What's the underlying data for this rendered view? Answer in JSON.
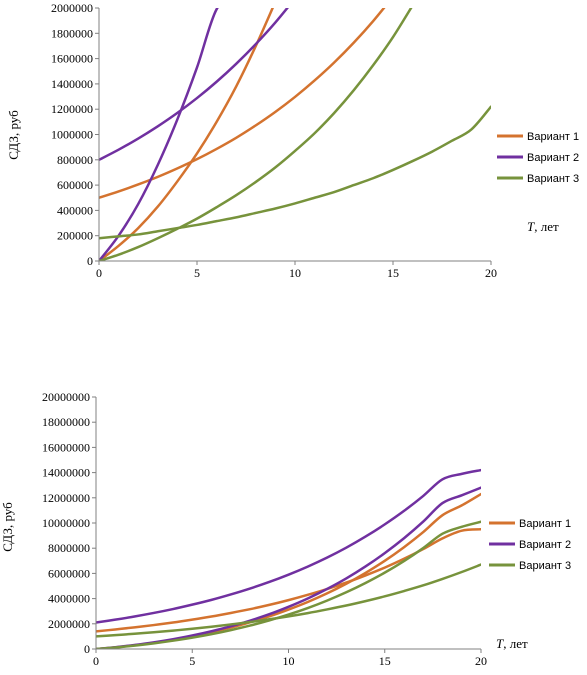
{
  "chart_data": [
    {
      "type": "line",
      "ylabel": "СДЗ, руб",
      "xlabel_italic": "T",
      "xlabel_rest": ", лет",
      "xlim": [
        0,
        20
      ],
      "ylim": [
        0,
        2000000
      ],
      "xticks": [
        "0",
        "5",
        "10",
        "15",
        "20"
      ],
      "yticks": [
        "0",
        "200000",
        "400000",
        "600000",
        "800000",
        "1000000",
        "1200000",
        "1400000",
        "1600000",
        "1800000",
        "2000000"
      ],
      "legend": [
        "Вариант 1",
        "Вариант 2",
        "Вариант 3"
      ],
      "colors": [
        "#d4732f",
        "#7030a0",
        "#77933c"
      ],
      "x": [
        0,
        1,
        2,
        3,
        4,
        5,
        6,
        7,
        8,
        9,
        10,
        11,
        12,
        13,
        14,
        15,
        16,
        17,
        18,
        19,
        20
      ],
      "series": [
        {
          "color": "#d4732f",
          "values": [
            500000,
            550000,
            605000,
            665000,
            732000,
            805000,
            886000,
            974000,
            1072000,
            1179000,
            1297000,
            1427000,
            1569000,
            1726000,
            1899000,
            2089000,
            null,
            null,
            null,
            null,
            null
          ]
        },
        {
          "color": "#d4732f",
          "values": [
            0,
            120000,
            260000,
            430000,
            630000,
            850000,
            1100000,
            1380000,
            1700000,
            2050000,
            null,
            null,
            null,
            null,
            null,
            null,
            null,
            null,
            null,
            null,
            null
          ]
        },
        {
          "color": "#7030a0",
          "values": [
            800000,
            880000,
            968000,
            1065000,
            1171000,
            1288000,
            1417000,
            1559000,
            1715000,
            1886000,
            2075000,
            null,
            null,
            null,
            null,
            null,
            null,
            null,
            null,
            null,
            null
          ]
        },
        {
          "color": "#7030a0",
          "values": [
            0,
            200000,
            450000,
            760000,
            1120000,
            1530000,
            1990000,
            2100000,
            null,
            null,
            null,
            null,
            null,
            null,
            null,
            null,
            null,
            null,
            null,
            null,
            null
          ]
        },
        {
          "color": "#77933c",
          "values": [
            180000,
            195000,
            210000,
            235000,
            260000,
            285000,
            315000,
            345000,
            380000,
            415000,
            455000,
            500000,
            545000,
            600000,
            655000,
            720000,
            790000,
            865000,
            950000,
            1040000,
            1220000
          ]
        },
        {
          "color": "#77933c",
          "values": [
            0,
            50000,
            110000,
            180000,
            255000,
            335000,
            425000,
            520000,
            625000,
            740000,
            870000,
            1010000,
            1170000,
            1350000,
            1550000,
            1770000,
            2020000,
            null,
            null,
            null,
            null
          ]
        }
      ]
    },
    {
      "type": "line",
      "ylabel": "СДЗ, руб",
      "xlabel_italic": "T",
      "xlabel_rest": ", лет",
      "xlim": [
        0,
        20
      ],
      "ylim": [
        0,
        20000000
      ],
      "xticks": [
        "0",
        "5",
        "10",
        "15",
        "20"
      ],
      "yticks": [
        "0",
        "2000000",
        "4000000",
        "6000000",
        "8000000",
        "10000000",
        "12000000",
        "14000000",
        "16000000",
        "18000000",
        "20000000"
      ],
      "legend": [
        "Вариант 1",
        "Вариант 2",
        "Вариант 3"
      ],
      "colors": [
        "#d4732f",
        "#7030a0",
        "#77933c"
      ],
      "x": [
        0,
        1,
        2,
        3,
        4,
        5,
        6,
        7,
        8,
        9,
        10,
        11,
        12,
        13,
        14,
        15,
        16,
        17,
        18,
        19,
        20
      ],
      "series": [
        {
          "color": "#d4732f",
          "values": [
            1400000,
            1550000,
            1720000,
            1900000,
            2100000,
            2330000,
            2580000,
            2860000,
            3160000,
            3500000,
            3880000,
            4300000,
            4760000,
            5270000,
            5840000,
            6460000,
            7160000,
            7930000,
            8780000,
            9390000,
            9500000
          ]
        },
        {
          "color": "#d4732f",
          "values": [
            0,
            130000,
            300000,
            500000,
            740000,
            1020000,
            1340000,
            1700000,
            2120000,
            2590000,
            3130000,
            3730000,
            4410000,
            5180000,
            6040000,
            7000000,
            8080000,
            9280000,
            10620000,
            11400000,
            12300000
          ]
        },
        {
          "color": "#7030a0",
          "values": [
            2100000,
            2330000,
            2580000,
            2860000,
            3170000,
            3520000,
            3900000,
            4330000,
            4800000,
            5320000,
            5900000,
            6540000,
            7250000,
            8040000,
            8920000,
            9890000,
            10960000,
            12150000,
            13470000,
            13900000,
            14200000
          ]
        },
        {
          "color": "#7030a0",
          "values": [
            0,
            140000,
            320000,
            530000,
            780000,
            1070000,
            1410000,
            1800000,
            2250000,
            2760000,
            3350000,
            4010000,
            4760000,
            5600000,
            6550000,
            7610000,
            8790000,
            10110000,
            11580000,
            12200000,
            12800000
          ]
        },
        {
          "color": "#77933c",
          "values": [
            1000000,
            1100000,
            1210000,
            1330000,
            1460000,
            1610000,
            1770000,
            1950000,
            2140000,
            2360000,
            2590000,
            2850000,
            3140000,
            3450000,
            3800000,
            4180000,
            4600000,
            5050000,
            5560000,
            6110000,
            6700000
          ]
        },
        {
          "color": "#77933c",
          "values": [
            0,
            120000,
            270000,
            450000,
            660000,
            900000,
            1180000,
            1500000,
            1860000,
            2270000,
            2730000,
            3250000,
            3840000,
            4500000,
            5240000,
            6060000,
            6980000,
            8010000,
            9150000,
            9700000,
            10100000
          ]
        }
      ]
    }
  ]
}
